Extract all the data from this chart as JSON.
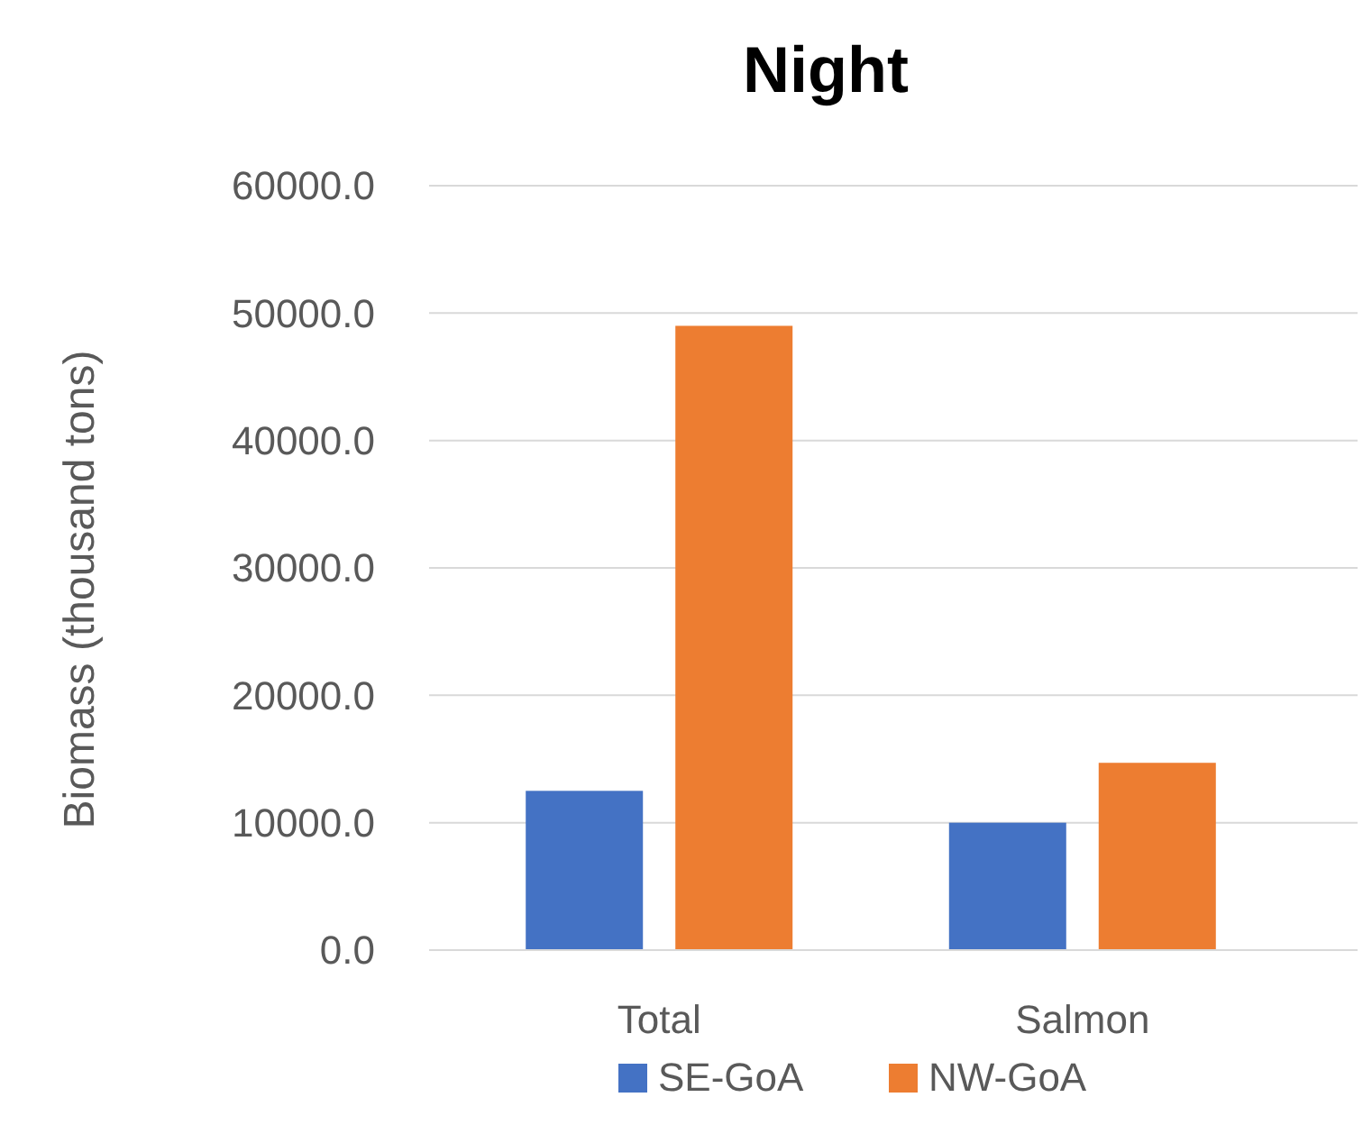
{
  "chart_data": {
    "type": "bar",
    "title": "Night",
    "ylabel": "Biomass (thousand tons)",
    "categories": [
      "Total",
      "Salmon"
    ],
    "series": [
      {
        "name": "SE-GoA",
        "color": "#4472c4",
        "values": [
          12500,
          10000
        ]
      },
      {
        "name": "NW-GoA",
        "color": "#ed7d31",
        "values": [
          49000,
          14700
        ]
      }
    ],
    "ylim": [
      0,
      60000
    ],
    "yticks": [
      {
        "value": 0,
        "label": "0.0"
      },
      {
        "value": 10000,
        "label": "10000.0"
      },
      {
        "value": 20000,
        "label": "20000.0"
      },
      {
        "value": 30000,
        "label": "30000.0"
      },
      {
        "value": 40000,
        "label": "40000.0"
      },
      {
        "value": 50000,
        "label": "50000.0"
      },
      {
        "value": 60000,
        "label": "60000.0"
      }
    ],
    "grid": "y",
    "legend": "bottom"
  }
}
